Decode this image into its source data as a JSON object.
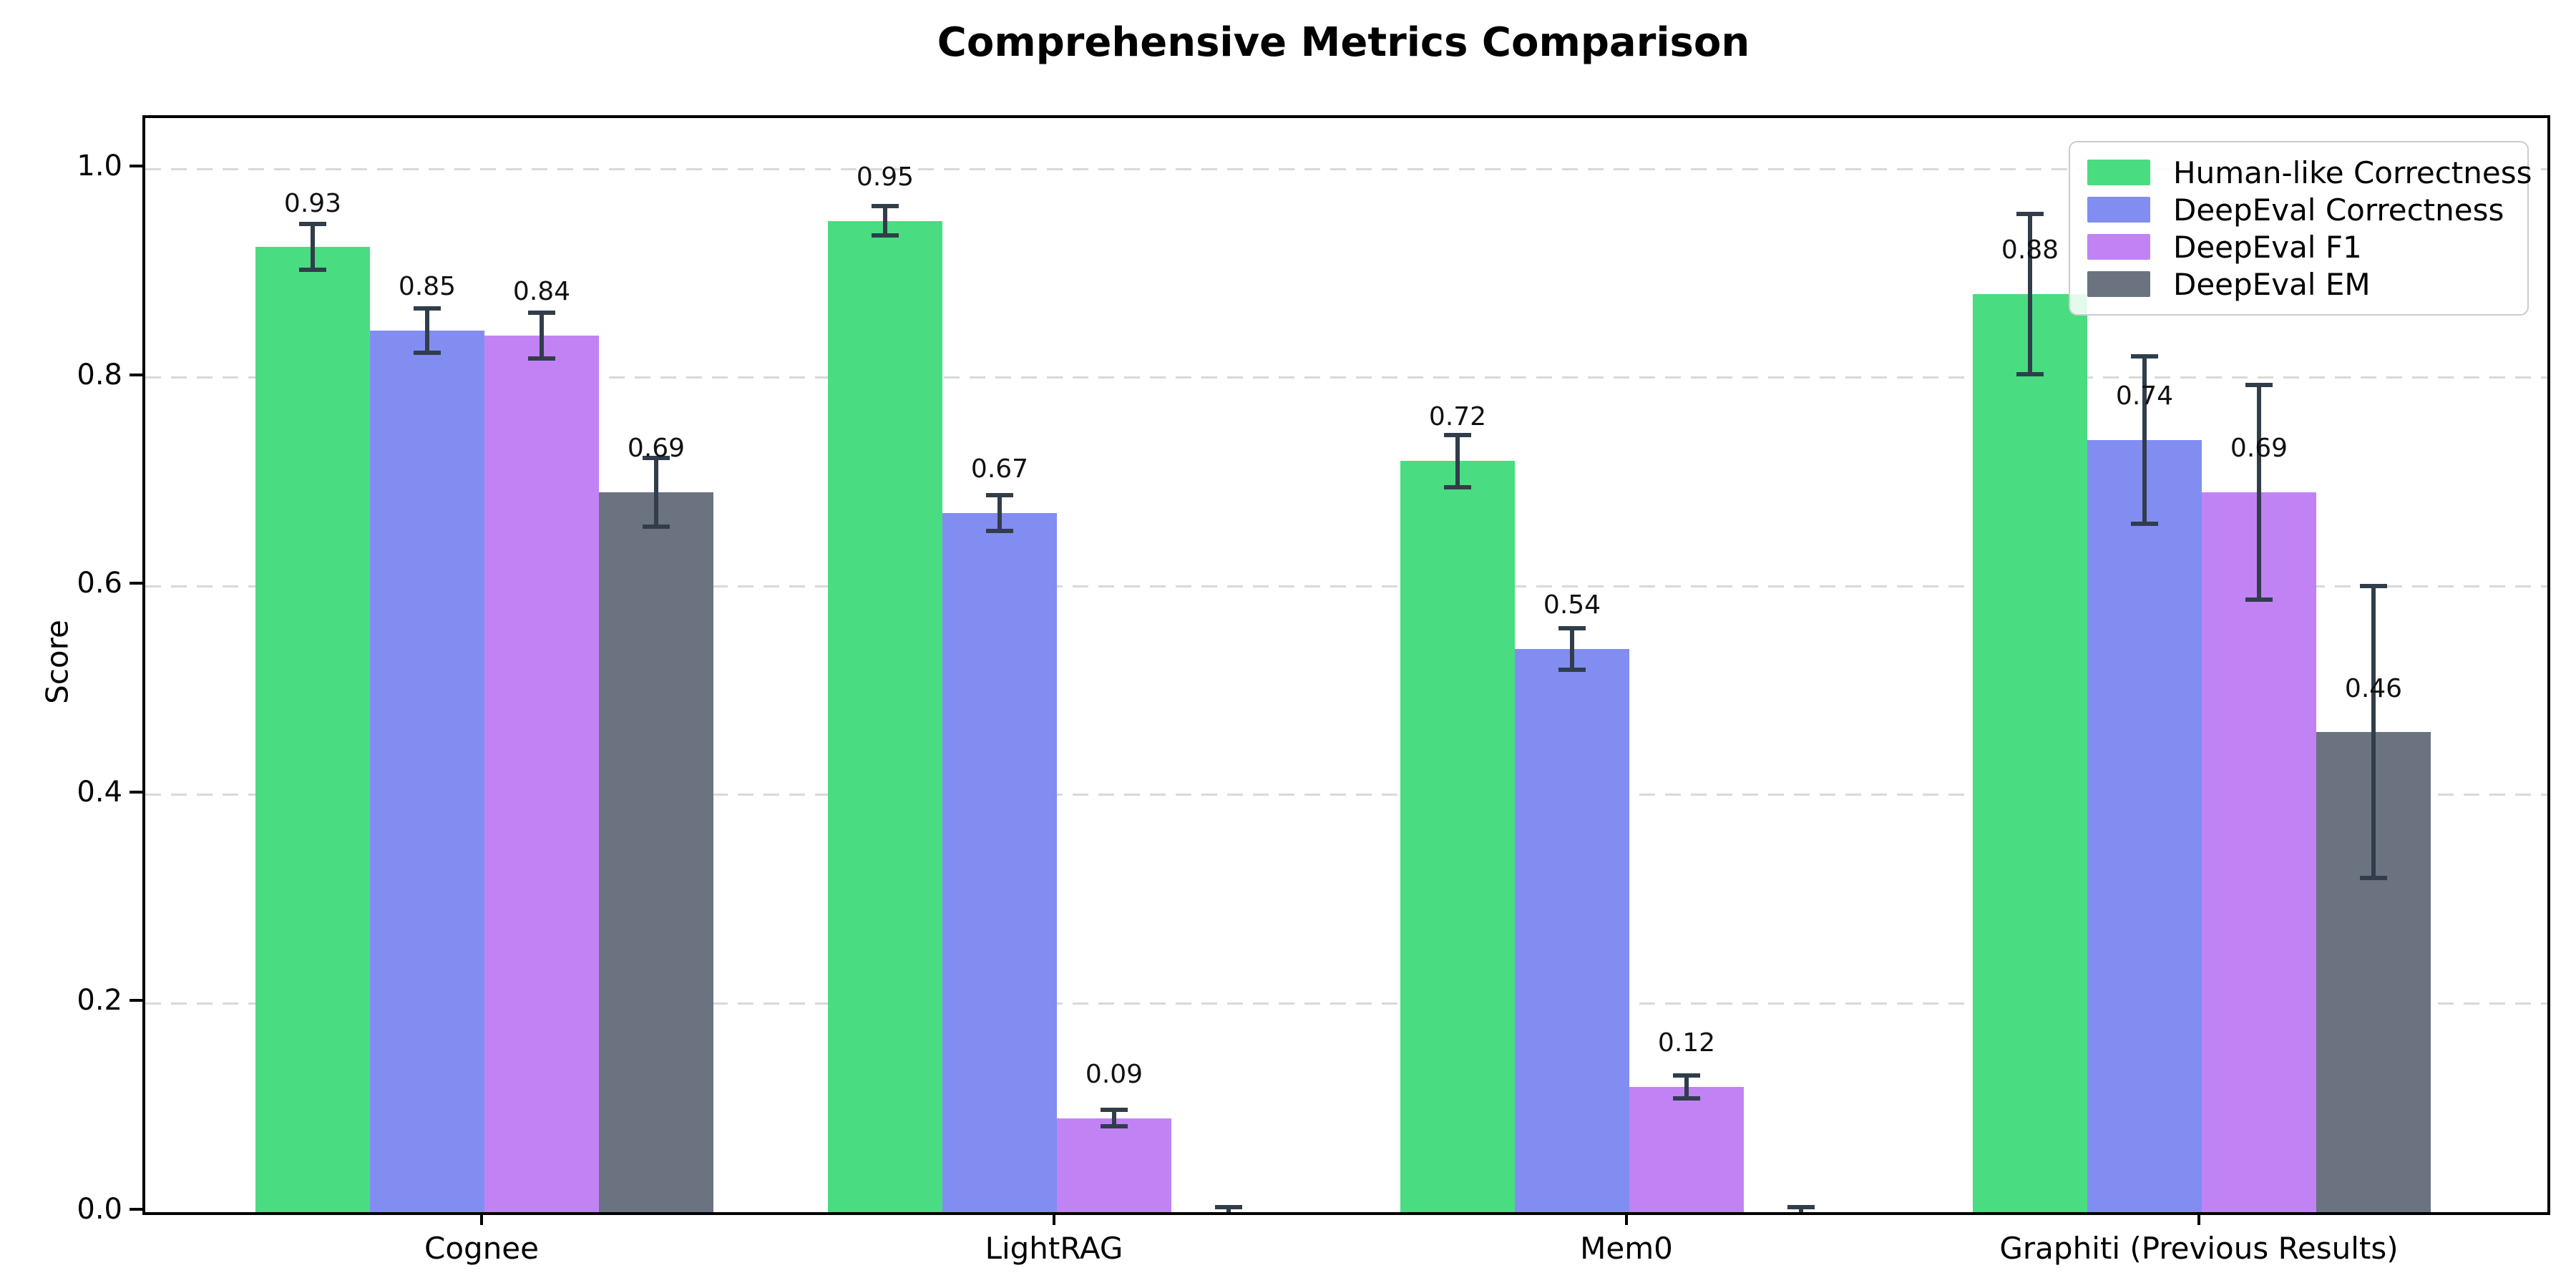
{
  "title": "Comprehensive Metrics Comparison",
  "chart_data": {
    "type": "bar",
    "title": "Comprehensive Metrics Comparison",
    "xlabel": "",
    "ylabel": "Score",
    "ylim": [
      0,
      1.05
    ],
    "grid": "horizontal dashed gridlines at 0.2 intervals",
    "legend_position": "upper right",
    "background": "#ffffff",
    "ytick_values": [
      0.0,
      0.2,
      0.4,
      0.6,
      0.8,
      1.0
    ],
    "ytick_labels": [
      "0.0",
      "0.2",
      "0.4",
      "0.6",
      "0.8",
      "1.0"
    ],
    "categories": [
      "Cognee",
      "LightRAG",
      "Mem0",
      "Graphiti (Previous Results)"
    ],
    "error_bar_color": "#313d4a",
    "series": [
      {
        "name": "Human-like Correctness",
        "color": "#4adc81",
        "values": [
          0.925,
          0.95,
          0.72,
          0.88
        ],
        "errors": [
          0.022,
          0.014,
          0.025,
          0.077
        ],
        "labels": [
          "0.93",
          "0.95",
          "0.72",
          "0.88"
        ]
      },
      {
        "name": "DeepEval Correctness",
        "color": "#828df2",
        "values": [
          0.845,
          0.67,
          0.54,
          0.74
        ],
        "errors": [
          0.021,
          0.017,
          0.02,
          0.08
        ],
        "labels": [
          "0.85",
          "0.67",
          "0.54",
          "0.74"
        ]
      },
      {
        "name": "DeepEval F1",
        "color": "#c183f4",
        "values": [
          0.84,
          0.09,
          0.12,
          0.69
        ],
        "errors": [
          0.022,
          0.008,
          0.011,
          0.103
        ],
        "labels": [
          "0.84",
          "0.09",
          "0.12",
          "0.69"
        ]
      },
      {
        "name": "DeepEval EM",
        "color": "#6b7280",
        "values": [
          0.69,
          0.0,
          0.0,
          0.46
        ],
        "errors": [
          0.033,
          0.005,
          0.005,
          0.14
        ],
        "labels": [
          "0.69",
          "",
          "",
          "0.46"
        ]
      }
    ]
  }
}
